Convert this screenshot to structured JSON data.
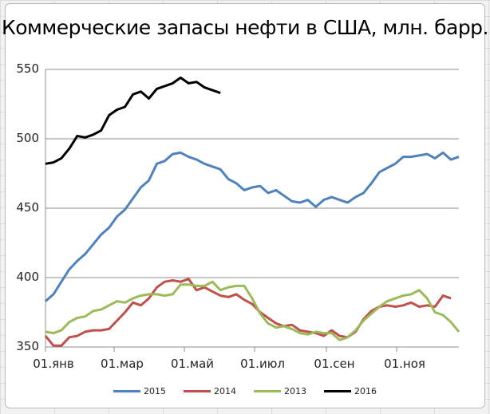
{
  "chart_data": {
    "type": "line",
    "title": "Коммерческие запасы нефти в США, млн. барр.",
    "xlabel": "",
    "ylabel": "",
    "ylim": [
      350,
      550
    ],
    "yticks": [
      350,
      400,
      450,
      500,
      550
    ],
    "xtick_labels": [
      "01.янв",
      "01.мар",
      "01.май",
      "01.июл",
      "01.сен",
      "01.ноя"
    ],
    "x_unit": "week of year (1-52)",
    "grid": "horizontal",
    "legend_position": "bottom",
    "series": [
      {
        "name": "2015",
        "color": "#4f81bd",
        "values": [
          383,
          388,
          397,
          406,
          412,
          417,
          424,
          431,
          436,
          444,
          449,
          457,
          465,
          470,
          482,
          484,
          489,
          490,
          487,
          485,
          482,
          480,
          478,
          471,
          468,
          463,
          465,
          466,
          461,
          463,
          459,
          455,
          454,
          456,
          451,
          456,
          458,
          456,
          454,
          458,
          461,
          468,
          476,
          479,
          482,
          487,
          487,
          488,
          489,
          486,
          490,
          485,
          487
        ]
      },
      {
        "name": "2014",
        "color": "#c0504d",
        "values": [
          358,
          351,
          351,
          357,
          358,
          361,
          362,
          362,
          363,
          369,
          375,
          382,
          380,
          385,
          393,
          397,
          398,
          397,
          399,
          391,
          393,
          390,
          387,
          386,
          388,
          384,
          381,
          375,
          371,
          367,
          365,
          366,
          362,
          361,
          360,
          358,
          362,
          358,
          357,
          361,
          370,
          376,
          379,
          380,
          379,
          380,
          382,
          379,
          380,
          379,
          387,
          385
        ]
      },
      {
        "name": "2013",
        "color": "#9bbb59",
        "values": [
          361,
          360,
          362,
          368,
          371,
          372,
          376,
          377,
          380,
          383,
          382,
          385,
          387,
          388,
          388,
          387,
          388,
          395,
          395,
          394,
          394,
          397,
          391,
          393,
          394,
          394,
          385,
          374,
          367,
          364,
          365,
          363,
          360,
          359,
          361,
          360,
          360,
          355,
          357,
          362,
          369,
          374,
          379,
          383,
          385,
          387,
          388,
          391,
          385,
          375,
          373,
          368,
          361
        ]
      },
      {
        "name": "2016",
        "color": "#000000",
        "values": [
          482,
          483,
          486,
          493,
          502,
          501,
          503,
          506,
          517,
          521,
          523,
          532,
          534,
          529,
          536,
          538,
          540,
          544,
          540,
          541,
          537,
          535,
          533
        ]
      }
    ]
  },
  "legend": [
    {
      "label": "2015",
      "color": "#4f81bd"
    },
    {
      "label": "2014",
      "color": "#c0504d"
    },
    {
      "label": "2013",
      "color": "#9bbb59"
    },
    {
      "label": "2016",
      "color": "#000000"
    }
  ]
}
